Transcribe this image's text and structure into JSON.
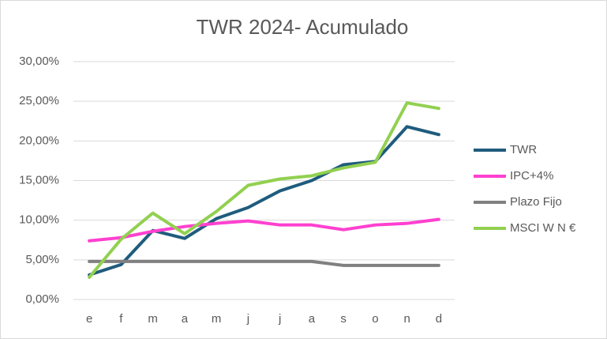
{
  "chart_data": {
    "type": "line",
    "title": "TWR 2024- Acumulado",
    "categories": [
      "e",
      "f",
      "m",
      "a",
      "m",
      "j",
      "j",
      "a",
      "s",
      "o",
      "n",
      "d"
    ],
    "series": [
      {
        "name": "TWR",
        "color": "#1f5c7d",
        "values": [
          3.1,
          4.4,
          8.7,
          7.7,
          10.2,
          11.6,
          13.7,
          15.0,
          17.0,
          17.4,
          21.8,
          20.8
        ]
      },
      {
        "name": "IPC+4%",
        "color": "#ff40d0",
        "values": [
          7.4,
          7.8,
          8.6,
          9.2,
          9.6,
          9.9,
          9.4,
          9.4,
          8.8,
          9.4,
          9.6,
          10.1
        ]
      },
      {
        "name": "Plazo Fijo",
        "color": "#808080",
        "values": [
          4.8,
          4.8,
          4.8,
          4.8,
          4.8,
          4.8,
          4.8,
          4.8,
          4.3,
          4.3,
          4.3,
          4.3
        ]
      },
      {
        "name": "MSCI W N €",
        "color": "#92d050",
        "values": [
          2.8,
          7.6,
          10.9,
          8.3,
          11.1,
          14.4,
          15.2,
          15.6,
          16.6,
          17.3,
          24.8,
          24.1
        ]
      }
    ],
    "ylim": [
      0,
      30
    ],
    "yticks": [
      {
        "value": 0,
        "label": "0,00%"
      },
      {
        "value": 5,
        "label": "5,00%"
      },
      {
        "value": 10,
        "label": "10,00%"
      },
      {
        "value": 15,
        "label": "15,00%"
      },
      {
        "value": 20,
        "label": "20,00%"
      },
      {
        "value": 25,
        "label": "25,00%"
      },
      {
        "value": 30,
        "label": "30,00%"
      }
    ],
    "grid": true,
    "legend": "right"
  }
}
